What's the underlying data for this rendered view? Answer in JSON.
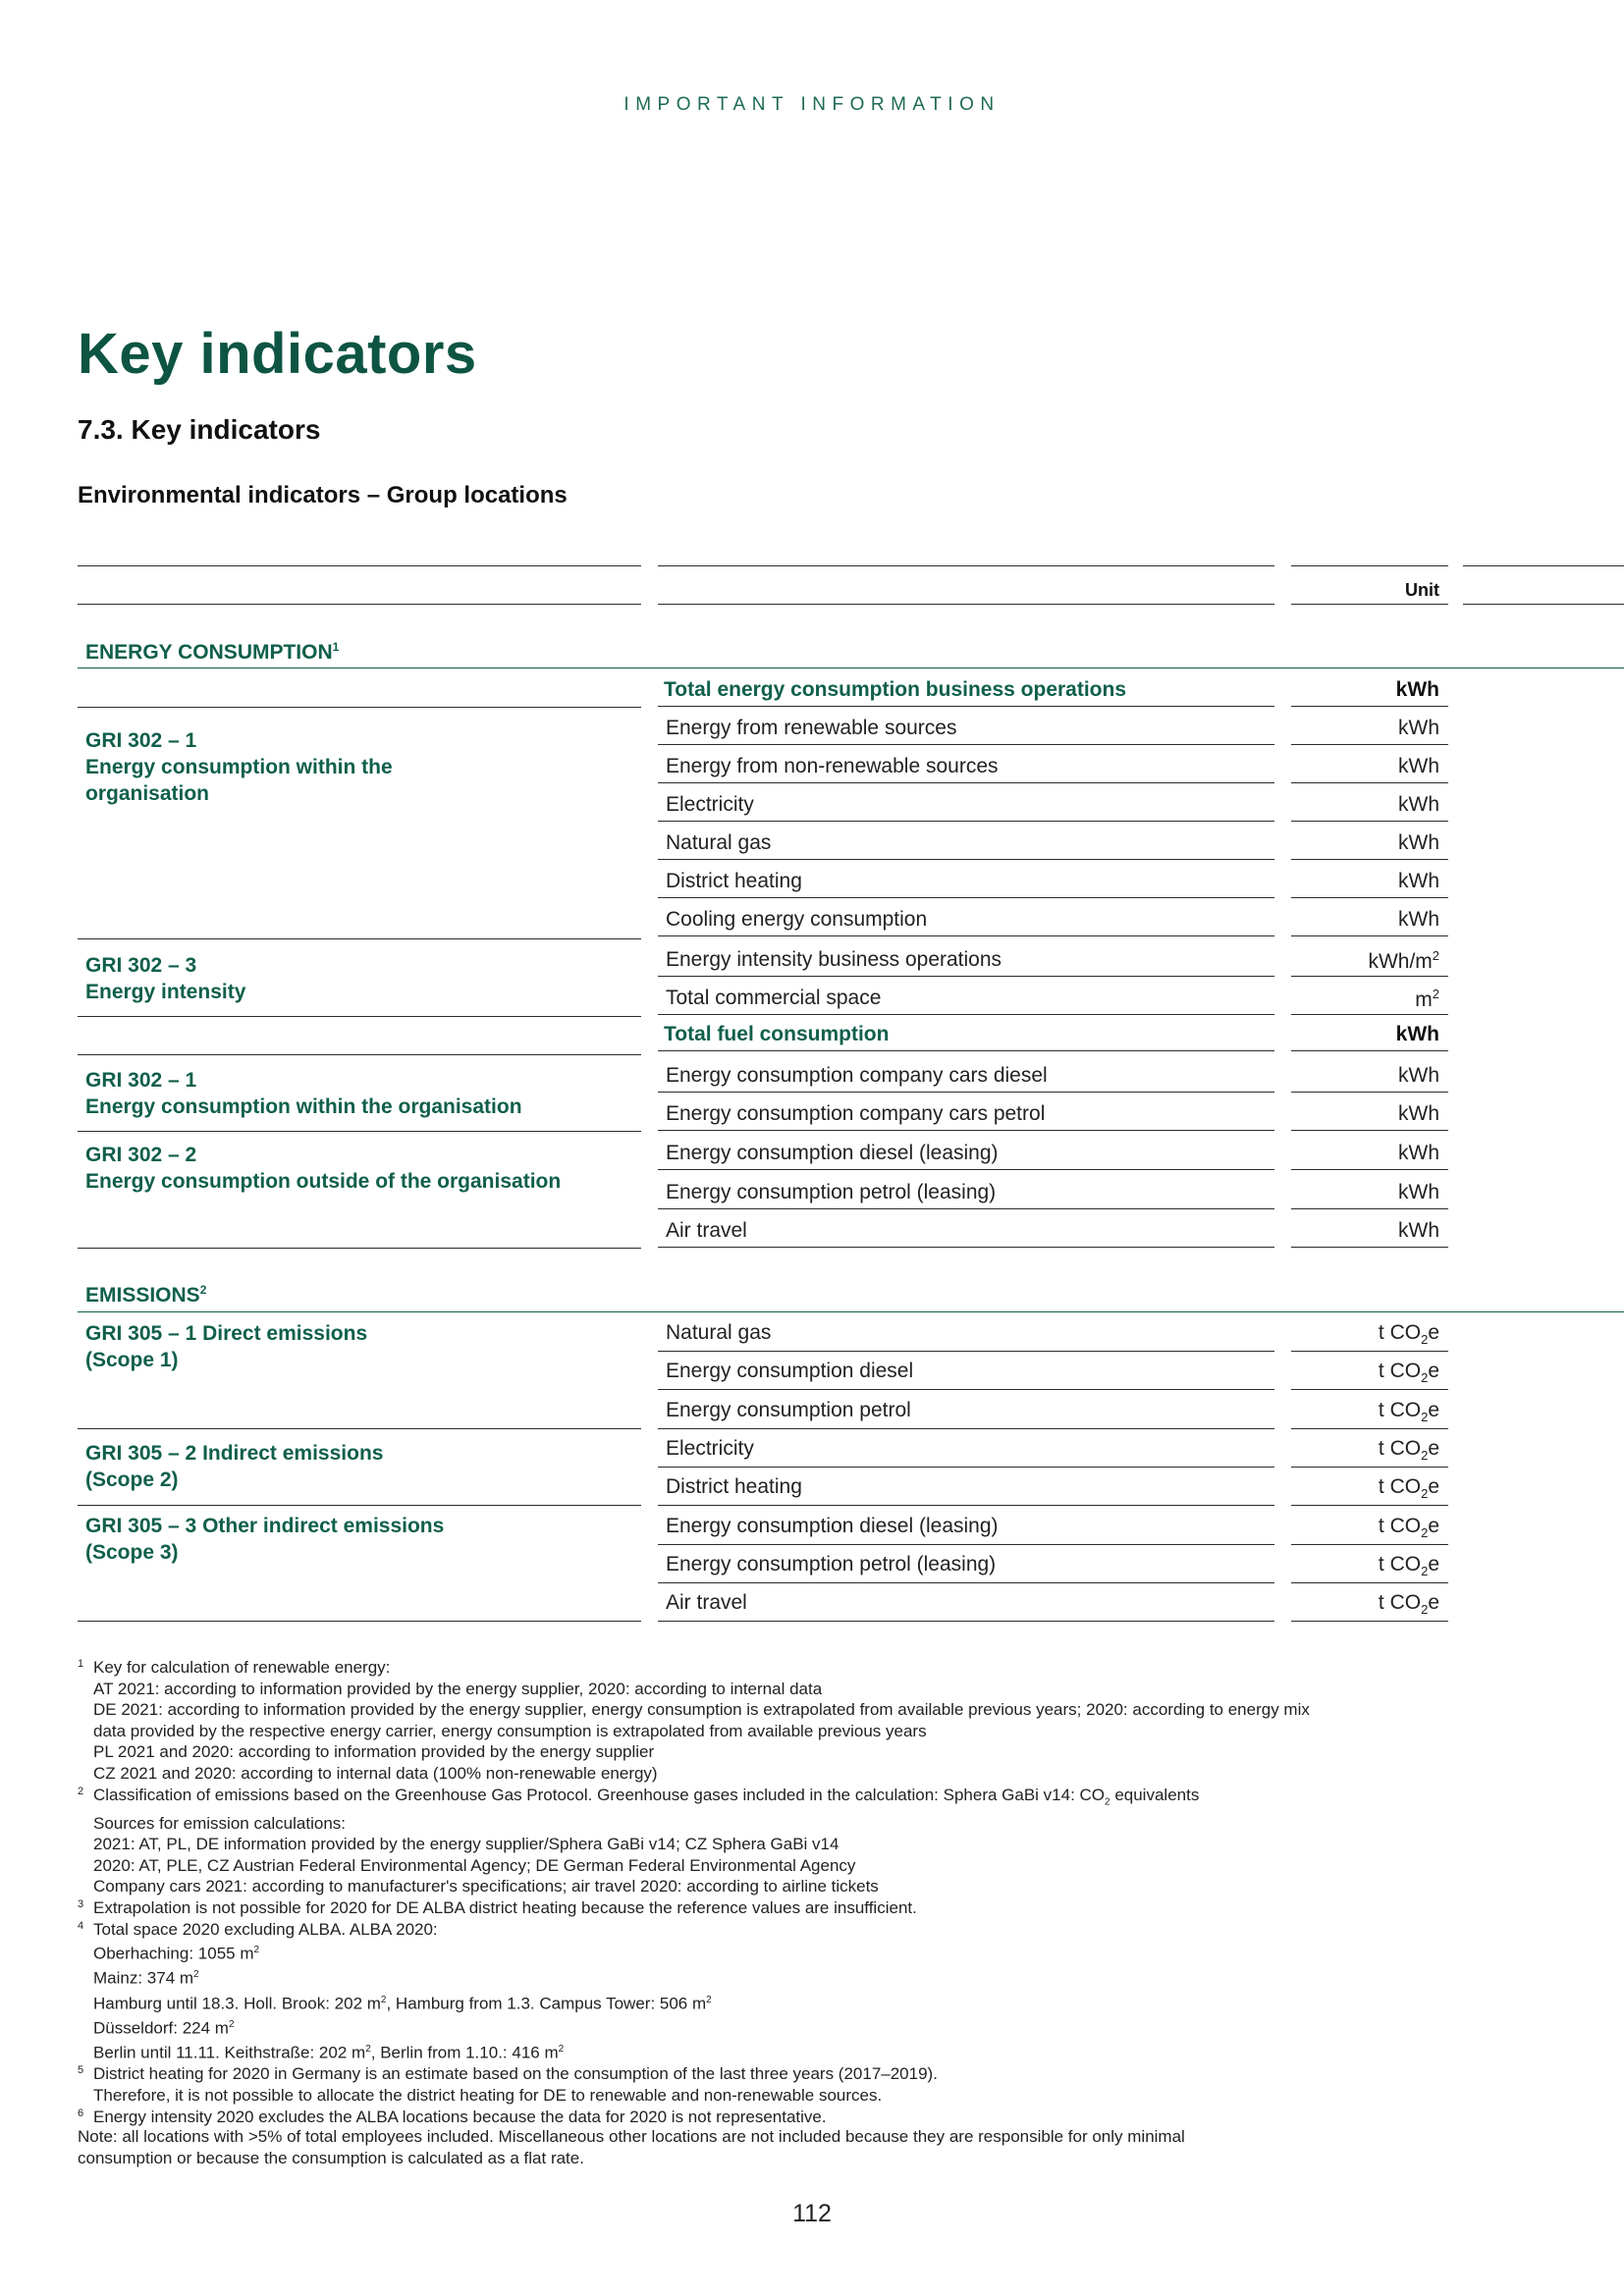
{
  "header": {
    "section_label": "IMPORTANT INFORMATION"
  },
  "title": "Key indicators",
  "section_title": "7.3. Key indicators",
  "table_title": "Environmental indicators – Group locations",
  "table": {
    "unit_header": "Unit",
    "energy": {
      "category": "ENERGY CONSUMPTION",
      "category_footnote": "1",
      "groups": [
        {
          "code": "GRI 302 – 1",
          "lines": [
            "Energy consumption within the",
            "organisation"
          ]
        },
        {
          "code": "GRI 302 – 3",
          "lines": [
            "Energy intensity"
          ]
        },
        {
          "code": "GRI 302 – 1",
          "lines": [
            "Energy consumption within the organisation"
          ]
        },
        {
          "code": "GRI 302 – 2",
          "lines": [
            "Energy consumption outside of the organisation"
          ]
        }
      ],
      "rows": [
        {
          "indicator": "Total energy consumption business operations",
          "unit": "kWh",
          "highlight": true
        },
        {
          "indicator": "Energy from renewable sources",
          "unit": "kWh"
        },
        {
          "indicator": "Energy from non-renewable sources",
          "unit": "kWh"
        },
        {
          "indicator": "Electricity",
          "unit": "kWh"
        },
        {
          "indicator": "Natural gas",
          "unit": "kWh"
        },
        {
          "indicator": "District heating",
          "unit": "kWh"
        },
        {
          "indicator": "Cooling energy consumption",
          "unit": "kWh"
        },
        {
          "indicator": "Energy intensity business operations",
          "unit": "kWh/m",
          "unit_sup": "2"
        },
        {
          "indicator": "Total commercial space",
          "unit": "m",
          "unit_sup": "2"
        },
        {
          "indicator": "Total fuel consumption",
          "unit": "kWh",
          "highlight": true
        },
        {
          "indicator": "Energy consumption company cars diesel",
          "unit": "kWh"
        },
        {
          "indicator": "Energy consumption company cars petrol",
          "unit": "kWh"
        },
        {
          "indicator": "Energy consumption diesel (leasing)",
          "unit": "kWh"
        },
        {
          "indicator": "Energy consumption petrol (leasing)",
          "unit": "kWh"
        },
        {
          "indicator": "Air travel",
          "unit": "kWh"
        }
      ]
    },
    "emissions": {
      "category": "EMISSIONS",
      "category_footnote": "2",
      "groups": [
        {
          "lines": [
            "GRI 305 – 1 Direct emissions",
            "(Scope 1)"
          ]
        },
        {
          "lines": [
            "GRI 305 – 2 Indirect emissions",
            "(Scope 2)"
          ]
        },
        {
          "lines": [
            "GRI 305 – 3 Other indirect emissions",
            "(Scope 3)"
          ]
        }
      ],
      "unit_prefix": "t CO",
      "unit_sub": "2",
      "unit_suffix": "e",
      "rows": [
        {
          "indicator": "Natural gas"
        },
        {
          "indicator": "Energy consumption diesel"
        },
        {
          "indicator": "Energy consumption petrol"
        },
        {
          "indicator": "Electricity"
        },
        {
          "indicator": "District heating"
        },
        {
          "indicator": "Energy consumption diesel (leasing)"
        },
        {
          "indicator": "Energy consumption petrol (leasing)"
        },
        {
          "indicator": "Air travel"
        }
      ]
    }
  },
  "footnotes": [
    {
      "num": "1",
      "lines": [
        "Key for calculation of renewable energy:",
        "AT 2021: according to information provided by the energy supplier, 2020: according to internal data",
        "DE 2021: according to information provided by the energy supplier, energy consumption is extrapolated from available previous years; 2020: according to energy mix",
        "data provided by the respective energy carrier, energy consumption is extrapolated from available previous years",
        "PL 2021 and 2020: according to information provided by the energy supplier",
        "CZ 2021 and 2020: according to internal data (100% non-renewable energy)"
      ]
    },
    {
      "num": "2",
      "lines": [
        "Classification of emissions based on the Greenhouse Gas Protocol. Greenhouse gases included in the calculation: Sphera GaBi v14: CO|2| equivalents",
        "Sources for emission calculations:",
        "2021: AT, PL, DE information provided by the energy supplier/Sphera GaBi v14; CZ Sphera GaBi v14",
        "2020: AT, PLE, CZ Austrian Federal Environmental Agency; DE German Federal Environmental Agency",
        "Company cars 2021: according to manufacturer's specifications; air travel 2020: according to airline tickets"
      ]
    },
    {
      "num": "3",
      "lines": [
        "Extrapolation is not possible for 2020 for DE ALBA district heating because the reference values are insufficient."
      ]
    },
    {
      "num": "4",
      "lines": [
        "Total space 2020 excluding ALBA. ALBA 2020:",
        "Oberhaching: 1055 m^2^",
        "Mainz: 374 m^2^",
        "Hamburg until 18.3. Holl. Brook: 202 m^2^, Hamburg from 1.3. Campus Tower: 506 m^2^",
        "Düsseldorf: 224 m^2^",
        "Berlin until 11.11. Keithstraße: 202 m^2^, Berlin from 1.10.: 416 m^2^"
      ]
    },
    {
      "num": "5",
      "lines": [
        "District heating for 2020 in Germany is an estimate based on the consumption of the last three years (2017–2019).",
        "Therefore, it is not possible to allocate the district heating for DE to renewable and non-renewable sources."
      ]
    },
    {
      "num": "6",
      "lines": [
        "Energy intensity 2020 excludes the ALBA locations because the data for 2020 is not representative."
      ]
    }
  ],
  "note": [
    "Note: all locations with >5% of total employees included. Miscellaneous other locations are not included because they are responsible for only minimal",
    "consumption or because the consumption is calculated as a flat rate."
  ],
  "page_number": "112"
}
